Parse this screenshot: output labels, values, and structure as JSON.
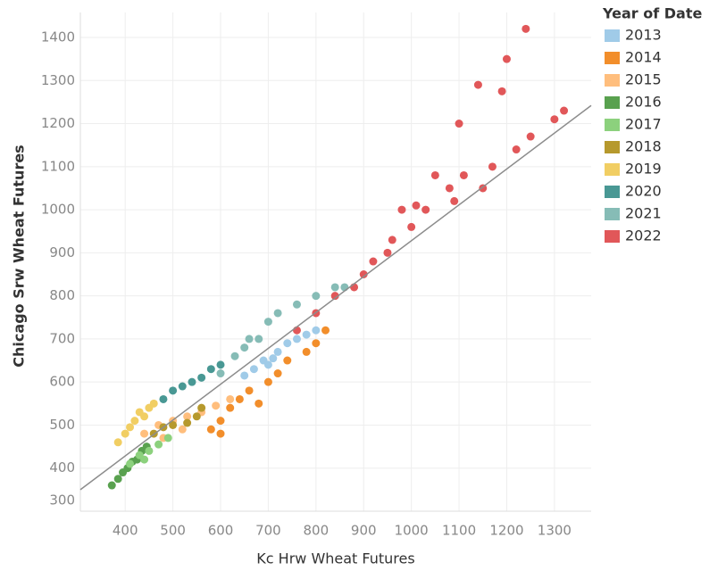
{
  "chart_data": {
    "type": "scatter",
    "x_label": "Kc Hrw Wheat Futures",
    "y_label": "Chicago Srw Wheat Futures",
    "legend_title": "Year of Date",
    "xlim": [
      306,
      1377
    ],
    "ylim": [
      300,
      1458
    ],
    "xticks": [
      400,
      500,
      600,
      700,
      800,
      900,
      1000,
      1100,
      1200,
      1300
    ],
    "yticks": [
      300,
      400,
      500,
      600,
      700,
      800,
      900,
      1000,
      1100,
      1200,
      1300,
      1400
    ],
    "grid": true,
    "trendline": {
      "color": "#8c8c8c",
      "x": [
        306,
        1377
      ],
      "y": [
        350,
        1242
      ]
    },
    "series": [
      {
        "name": "2013",
        "color": "#a0cbe8",
        "x": [
          650,
          670,
          690,
          700,
          720,
          740,
          760,
          780,
          800,
          710
        ],
        "values": [
          615,
          630,
          650,
          640,
          670,
          690,
          700,
          710,
          720,
          655
        ]
      },
      {
        "name": "2014",
        "color": "#f28e2b",
        "x": [
          580,
          600,
          620,
          640,
          660,
          700,
          720,
          740,
          780,
          800,
          820,
          680,
          600
        ],
        "values": [
          490,
          510,
          540,
          560,
          580,
          600,
          620,
          650,
          670,
          690,
          720,
          550,
          480
        ]
      },
      {
        "name": "2015",
        "color": "#ffbe7d",
        "x": [
          440,
          470,
          500,
          530,
          560,
          590,
          620,
          480,
          520
        ],
        "values": [
          480,
          500,
          510,
          520,
          530,
          545,
          560,
          470,
          490
        ]
      },
      {
        "name": "2016",
        "color": "#59a14f",
        "x": [
          372,
          385,
          395,
          405,
          415,
          425,
          435,
          445
        ],
        "values": [
          360,
          375,
          390,
          400,
          415,
          420,
          440,
          450
        ]
      },
      {
        "name": "2017",
        "color": "#8cd17d",
        "x": [
          410,
          430,
          450,
          470,
          490,
          440
        ],
        "values": [
          410,
          430,
          440,
          455,
          470,
          420
        ]
      },
      {
        "name": "2018",
        "color": "#b6992d",
        "x": [
          460,
          480,
          500,
          530,
          550,
          560
        ],
        "values": [
          480,
          495,
          500,
          505,
          520,
          540
        ]
      },
      {
        "name": "2019",
        "color": "#f1ce63",
        "x": [
          385,
          400,
          420,
          430,
          450,
          460,
          410,
          440
        ],
        "values": [
          460,
          480,
          510,
          530,
          540,
          550,
          495,
          520
        ]
      },
      {
        "name": "2020",
        "color": "#499894",
        "x": [
          480,
          500,
          520,
          540,
          560,
          580,
          600
        ],
        "values": [
          560,
          580,
          590,
          600,
          610,
          630,
          640
        ]
      },
      {
        "name": "2021",
        "color": "#86bcb6",
        "x": [
          600,
          630,
          650,
          680,
          700,
          720,
          760,
          800,
          840,
          860,
          660
        ],
        "values": [
          620,
          660,
          680,
          700,
          740,
          760,
          780,
          800,
          820,
          820,
          700
        ]
      },
      {
        "name": "2022",
        "color": "#e15759",
        "x": [
          760,
          800,
          840,
          880,
          900,
          920,
          950,
          960,
          1000,
          1010,
          1050,
          1080,
          1100,
          1110,
          1140,
          1150,
          1170,
          1190,
          1200,
          1220,
          1240,
          1250,
          1300,
          1320,
          1030,
          1090,
          980
        ],
        "values": [
          720,
          760,
          800,
          820,
          850,
          880,
          900,
          930,
          960,
          1010,
          1080,
          1050,
          1200,
          1080,
          1290,
          1050,
          1100,
          1275,
          1350,
          1140,
          1420,
          1170,
          1210,
          1230,
          1000,
          1020,
          1000
        ]
      }
    ]
  }
}
